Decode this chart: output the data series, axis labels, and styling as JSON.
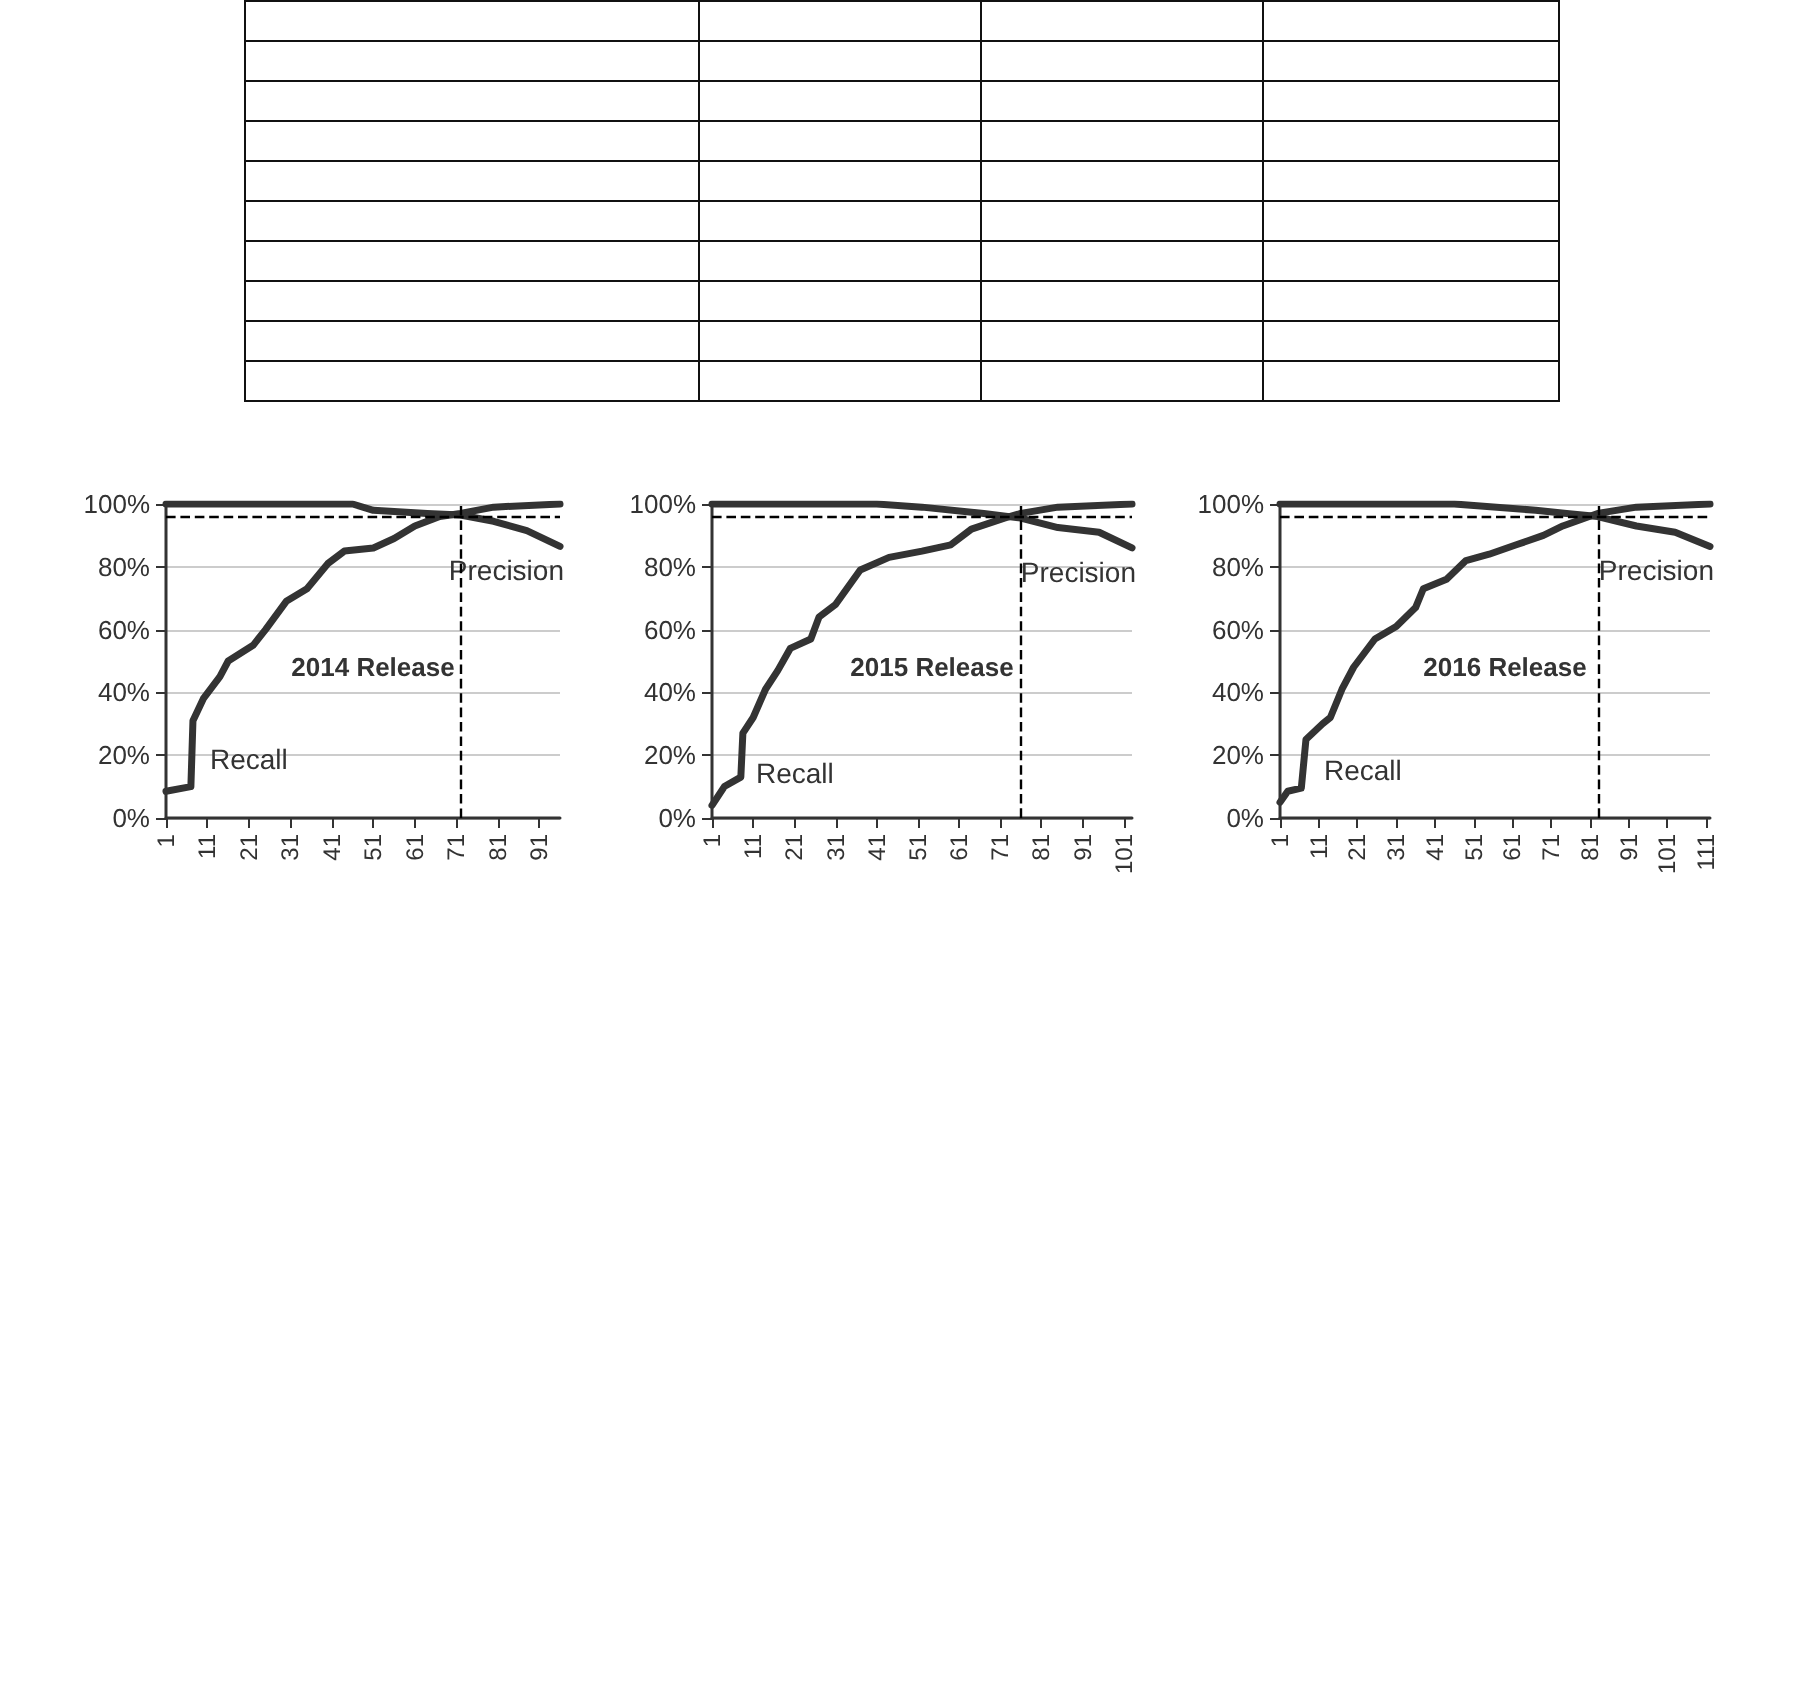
{
  "chart_data": [
    {
      "type": "line",
      "title": "2014 Release",
      "xlim": [
        1,
        96
      ],
      "xticks": [
        1,
        11,
        21,
        31,
        41,
        51,
        61,
        71,
        81,
        91
      ],
      "ylim": [
        0,
        100
      ],
      "yticks": [
        {
          "value": 0,
          "label": "0%"
        },
        {
          "value": 20,
          "label": "20%"
        },
        {
          "value": 40,
          "label": "40%"
        },
        {
          "value": 60,
          "label": "60%"
        },
        {
          "value": 80,
          "label": "80%"
        },
        {
          "value": 100,
          "label": "100%"
        }
      ],
      "grid": "y",
      "marker": "none",
      "line_style": "solid",
      "series": [
        {
          "name": "Recall",
          "color": "#333333",
          "x": [
            1,
            7,
            7.5,
            10,
            14,
            16,
            22,
            25,
            30,
            35,
            40,
            44,
            51,
            56,
            61,
            67,
            72,
            80,
            96
          ],
          "values": [
            8.5,
            10,
            31,
            38,
            45,
            50,
            55,
            60,
            69,
            73,
            81,
            85,
            86,
            89,
            93,
            96,
            97,
            99,
            100
          ]
        },
        {
          "name": "Precision",
          "color": "#333333",
          "x": [
            1,
            46,
            51,
            64,
            72,
            80,
            88,
            96
          ],
          "values": [
            100,
            100,
            98,
            97,
            96.5,
            94.5,
            91.5,
            86.5
          ]
        }
      ],
      "ref_lines": [
        {
          "axis": "y",
          "value": 96,
          "line_style": "dashed",
          "color": "#000000"
        },
        {
          "axis": "x",
          "value": 72,
          "line_style": "dashed",
          "color": "#000000"
        }
      ]
    },
    {
      "type": "line",
      "title": "2015 Release",
      "xlim": [
        1,
        103
      ],
      "xticks": [
        1,
        11,
        21,
        31,
        41,
        51,
        61,
        71,
        81,
        91,
        101
      ],
      "ylim": [
        0,
        100
      ],
      "yticks": [
        {
          "value": 0,
          "label": "0%"
        },
        {
          "value": 20,
          "label": "20%"
        },
        {
          "value": 40,
          "label": "40%"
        },
        {
          "value": 60,
          "label": "60%"
        },
        {
          "value": 80,
          "label": "80%"
        },
        {
          "value": 100,
          "label": "100%"
        }
      ],
      "grid": "y",
      "marker": "none",
      "line_style": "solid",
      "series": [
        {
          "name": "Recall",
          "color": "#333333",
          "x": [
            1,
            4,
            8,
            8.5,
            11,
            14,
            17,
            20,
            25,
            27,
            31,
            37,
            44,
            52,
            59,
            64,
            72,
            76,
            85,
            103
          ],
          "values": [
            4,
            10,
            13,
            27,
            32,
            41,
            47,
            54,
            57,
            64,
            68,
            79,
            83,
            85,
            87,
            92,
            95.5,
            97,
            99,
            100
          ]
        },
        {
          "name": "Precision",
          "color": "#333333",
          "x": [
            1,
            41,
            52,
            67,
            76,
            85,
            95,
            103
          ],
          "values": [
            100,
            100,
            99,
            97,
            95.5,
            92.5,
            91,
            86
          ]
        }
      ],
      "ref_lines": [
        {
          "axis": "y",
          "value": 96,
          "line_style": "dashed",
          "color": "#000000"
        },
        {
          "axis": "x",
          "value": 76,
          "line_style": "dashed",
          "color": "#000000"
        }
      ]
    },
    {
      "type": "line",
      "title": "2016 Release",
      "xlim": [
        1,
        112
      ],
      "xticks": [
        1,
        11,
        21,
        31,
        41,
        51,
        61,
        71,
        81,
        91,
        101,
        111
      ],
      "ylim": [
        0,
        100
      ],
      "yticks": [
        {
          "value": 0,
          "label": "0%"
        },
        {
          "value": 20,
          "label": "20%"
        },
        {
          "value": 40,
          "label": "40%"
        },
        {
          "value": 60,
          "label": "60%"
        },
        {
          "value": 80,
          "label": "80%"
        },
        {
          "value": 100,
          "label": "100%"
        }
      ],
      "grid": "y",
      "marker": "none",
      "line_style": "solid",
      "series": [
        {
          "name": "Recall",
          "color": "#333333",
          "x": [
            1,
            3,
            6.5,
            7.7,
            12,
            14,
            17,
            20,
            25.5,
            31,
            36,
            38,
            44,
            49,
            55,
            62,
            69,
            74,
            83,
            93,
            112
          ],
          "values": [
            5,
            8.5,
            9.5,
            25,
            30,
            32,
            41,
            48,
            57,
            61,
            67,
            73,
            76,
            82,
            84,
            87,
            90,
            93,
            97,
            99,
            100
          ]
        },
        {
          "name": "Precision",
          "color": "#333333",
          "x": [
            1,
            46,
            67,
            75,
            83,
            93,
            103,
            112
          ],
          "values": [
            100,
            100,
            98,
            97,
            96,
            93,
            91,
            86.5
          ]
        }
      ],
      "ref_lines": [
        {
          "axis": "y",
          "value": 96,
          "line_style": "dashed",
          "color": "#000000"
        },
        {
          "axis": "x",
          "value": 83,
          "line_style": "dashed",
          "color": "#000000"
        }
      ]
    }
  ]
}
